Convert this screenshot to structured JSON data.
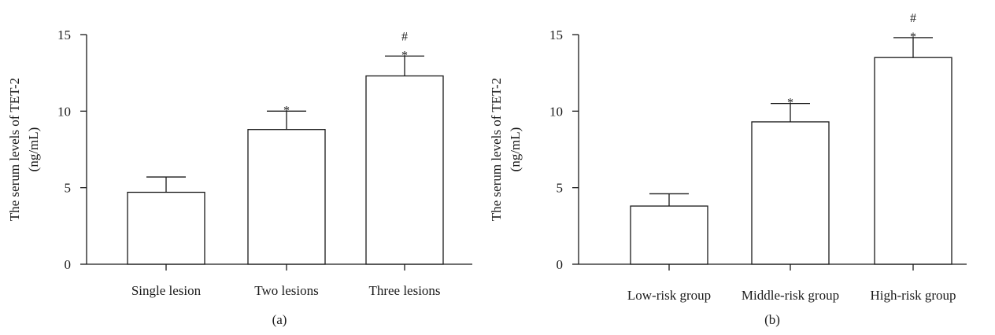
{
  "chart_data": [
    {
      "type": "bar",
      "panel_label": "(a)",
      "ylabel_lines": [
        "The serum levels of TET-2",
        "(ng/mL)"
      ],
      "xlabel": "",
      "ylim": [
        0,
        15
      ],
      "yticks": [
        0,
        5,
        10,
        15
      ],
      "categories": [
        "Single lesion",
        "Two lesions",
        "Three lesions"
      ],
      "values": [
        4.7,
        8.8,
        12.3
      ],
      "errors": [
        1.0,
        1.2,
        1.3
      ],
      "significance": [
        [],
        [
          "*"
        ],
        [
          "*",
          "#"
        ]
      ]
    },
    {
      "type": "bar",
      "panel_label": "(b)",
      "ylabel_lines": [
        "The serum levels of TET-2",
        "(ng/mL)"
      ],
      "xlabel": "",
      "ylim": [
        0,
        15
      ],
      "yticks": [
        0,
        5,
        10,
        15
      ],
      "categories": [
        "Low-risk group",
        "Middle-risk group",
        "High-risk group"
      ],
      "values": [
        3.8,
        9.3,
        13.5
      ],
      "errors": [
        0.8,
        1.2,
        1.3
      ],
      "significance": [
        [],
        [
          "*"
        ],
        [
          "*",
          "#"
        ]
      ]
    }
  ]
}
